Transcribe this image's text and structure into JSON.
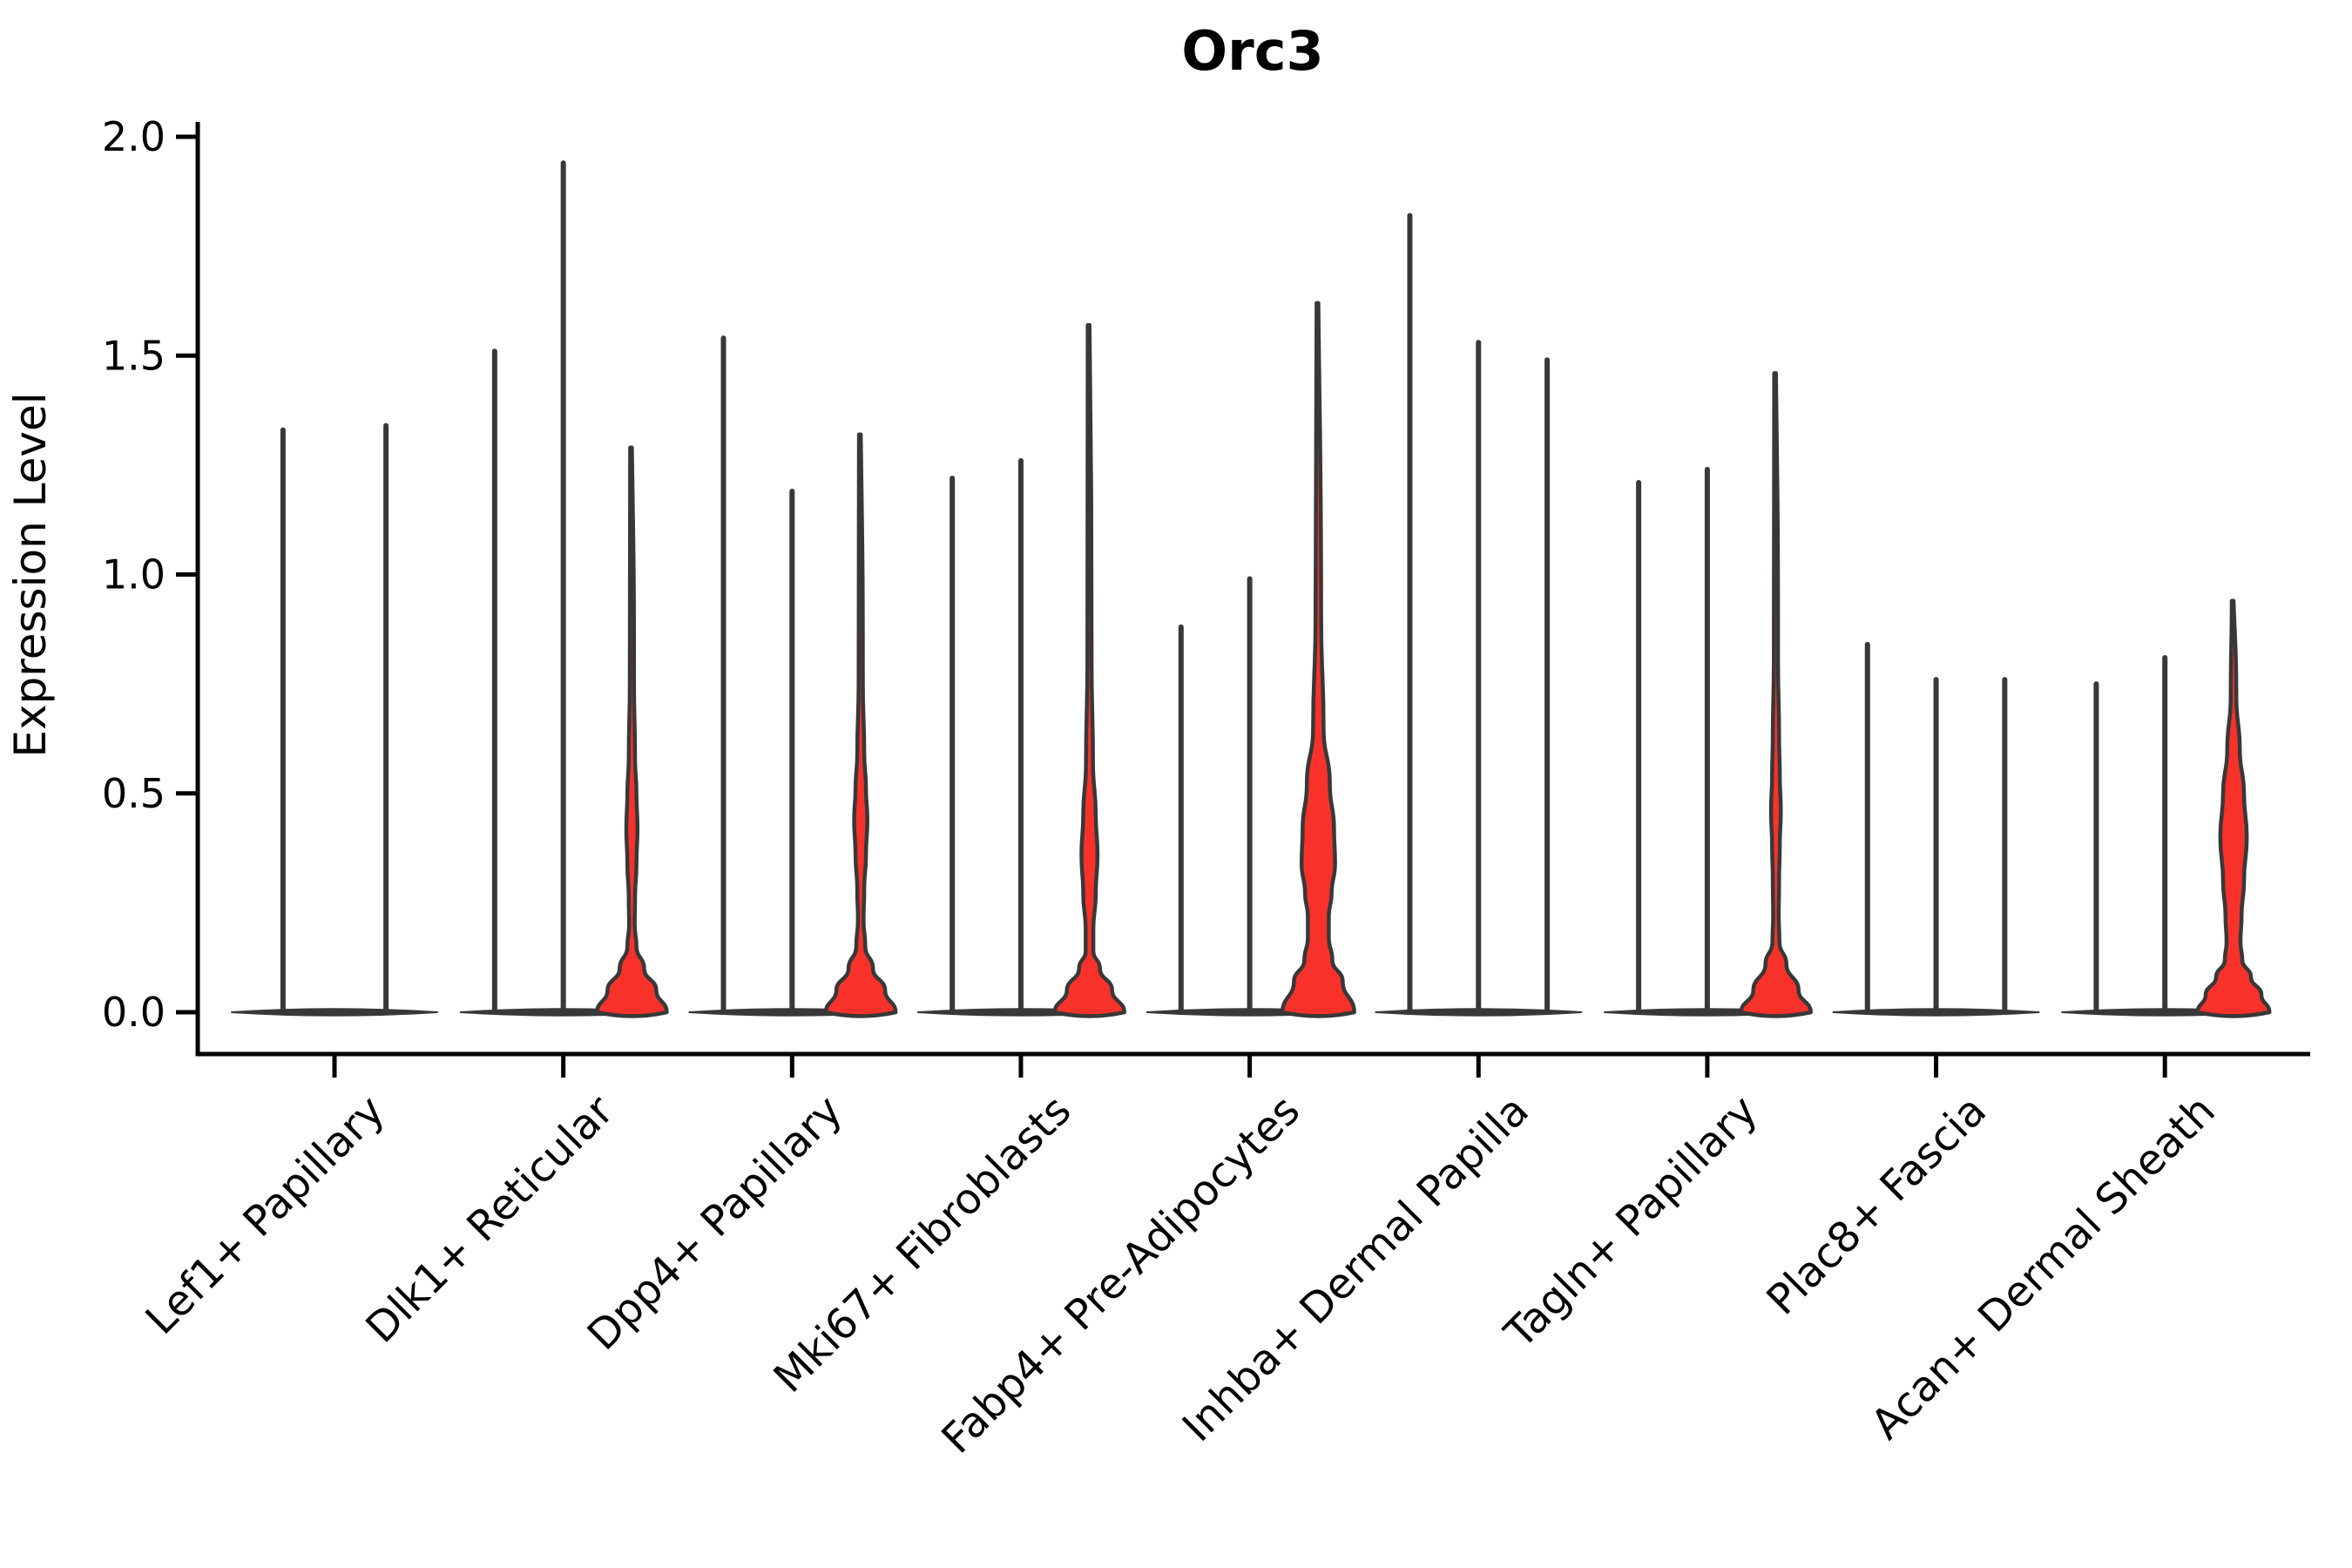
{
  "title": "Orc3",
  "colors": {
    "expressed_fill": "#f8322a",
    "violin_stroke": "#383838",
    "axis": "#000000",
    "background": "#ffffff"
  },
  "chart_data": {
    "type": "violin",
    "title": "Orc3",
    "xlabel": "",
    "ylabel": "Expression Level",
    "ylim": [
      0,
      2.0
    ],
    "ytick_labels": [
      "2.0",
      "1.5",
      "1.0",
      "0.5",
      "0.0"
    ],
    "ytick_values": [
      2.0,
      1.5,
      1.0,
      0.5,
      0.0
    ],
    "grid": false,
    "legend": "none",
    "categories": [
      "Lef1+ Papillary",
      "Dlk1+ Reticular",
      "Dpp4+ Papillary",
      "Mki67+ Fibroblasts",
      "Fabp4+ Pre-Adipocytes",
      "Inhba+ Dermal Papilla",
      "Tagln+ Papillary",
      "Plac8+ Fascia",
      "Acan+ Dermal Sheath"
    ],
    "groups": [
      {
        "violins": [
          {
            "max": 1.33,
            "expressed": false
          },
          {
            "max": 1.34,
            "expressed": false
          }
        ]
      },
      {
        "violins": [
          {
            "max": 1.51,
            "expressed": false
          },
          {
            "max": 1.94,
            "expressed": false
          },
          {
            "max": 1.29,
            "expressed": true,
            "profile": [
              [
                1.29,
                0.05
              ],
              [
                0.75,
                0.06
              ],
              [
                0.58,
                0.09
              ],
              [
                0.5,
                0.13
              ],
              [
                0.42,
                0.16
              ],
              [
                0.34,
                0.13
              ],
              [
                0.26,
                0.09
              ],
              [
                0.2,
                0.08
              ],
              [
                0.15,
                0.13
              ],
              [
                0.1,
                0.35
              ],
              [
                0.05,
                0.7
              ],
              [
                0.0,
                1.0
              ]
            ]
          }
        ]
      },
      {
        "violins": [
          {
            "max": 1.54,
            "expressed": false
          },
          {
            "max": 1.19,
            "expressed": false
          },
          {
            "max": 1.32,
            "expressed": true,
            "profile": [
              [
                1.32,
                0.05
              ],
              [
                0.75,
                0.06
              ],
              [
                0.59,
                0.1
              ],
              [
                0.51,
                0.15
              ],
              [
                0.44,
                0.19
              ],
              [
                0.36,
                0.15
              ],
              [
                0.28,
                0.1
              ],
              [
                0.21,
                0.08
              ],
              [
                0.15,
                0.13
              ],
              [
                0.1,
                0.35
              ],
              [
                0.05,
                0.7
              ],
              [
                0.0,
                1.0
              ]
            ]
          }
        ]
      },
      {
        "violins": [
          {
            "max": 1.22,
            "expressed": false
          },
          {
            "max": 1.26,
            "expressed": false
          },
          {
            "max": 1.57,
            "expressed": true,
            "profile": [
              [
                1.57,
                0.05
              ],
              [
                0.8,
                0.06
              ],
              [
                0.57,
                0.1
              ],
              [
                0.45,
                0.18
              ],
              [
                0.36,
                0.23
              ],
              [
                0.27,
                0.18
              ],
              [
                0.19,
                0.11
              ],
              [
                0.14,
                0.11
              ],
              [
                0.1,
                0.3
              ],
              [
                0.05,
                0.65
              ],
              [
                0.0,
                1.0
              ]
            ]
          }
        ]
      },
      {
        "violins": [
          {
            "max": 0.88,
            "expressed": false
          },
          {
            "max": 0.99,
            "expressed": false
          },
          {
            "max": 1.62,
            "expressed": true,
            "profile": [
              [
                1.62,
                0.05
              ],
              [
                0.9,
                0.08
              ],
              [
                0.65,
                0.15
              ],
              [
                0.52,
                0.33
              ],
              [
                0.42,
                0.45
              ],
              [
                0.34,
                0.48
              ],
              [
                0.27,
                0.38
              ],
              [
                0.22,
                0.3
              ],
              [
                0.17,
                0.3
              ],
              [
                0.12,
                0.4
              ],
              [
                0.07,
                0.7
              ],
              [
                0.0,
                1.03
              ]
            ]
          }
        ]
      },
      {
        "violins": [
          {
            "max": 1.82,
            "expressed": false
          },
          {
            "max": 1.53,
            "expressed": false
          },
          {
            "max": 1.49,
            "expressed": false
          }
        ]
      },
      {
        "violins": [
          {
            "max": 1.21,
            "expressed": false
          },
          {
            "max": 1.24,
            "expressed": false
          },
          {
            "max": 1.46,
            "expressed": true,
            "profile": [
              [
                1.46,
                0.05
              ],
              [
                0.8,
                0.06
              ],
              [
                0.63,
                0.09
              ],
              [
                0.54,
                0.11
              ],
              [
                0.46,
                0.14
              ],
              [
                0.38,
                0.11
              ],
              [
                0.3,
                0.09
              ],
              [
                0.22,
                0.08
              ],
              [
                0.16,
                0.1
              ],
              [
                0.11,
                0.3
              ],
              [
                0.05,
                0.65
              ],
              [
                0.0,
                1.0
              ]
            ]
          }
        ]
      },
      {
        "violins": [
          {
            "max": 0.84,
            "expressed": false
          },
          {
            "max": 0.76,
            "expressed": false
          },
          {
            "max": 0.76,
            "expressed": false
          }
        ]
      },
      {
        "violins": [
          {
            "max": 0.75,
            "expressed": false
          },
          {
            "max": 0.81,
            "expressed": false
          },
          {
            "max": 0.94,
            "expressed": true,
            "profile": [
              [
                0.94,
                0.05
              ],
              [
                0.72,
                0.08
              ],
              [
                0.6,
                0.18
              ],
              [
                0.5,
                0.3
              ],
              [
                0.4,
                0.38
              ],
              [
                0.3,
                0.3
              ],
              [
                0.22,
                0.23
              ],
              [
                0.16,
                0.2
              ],
              [
                0.12,
                0.25
              ],
              [
                0.08,
                0.5
              ],
              [
                0.04,
                0.8
              ],
              [
                0.0,
                1.03
              ]
            ]
          }
        ]
      }
    ]
  }
}
